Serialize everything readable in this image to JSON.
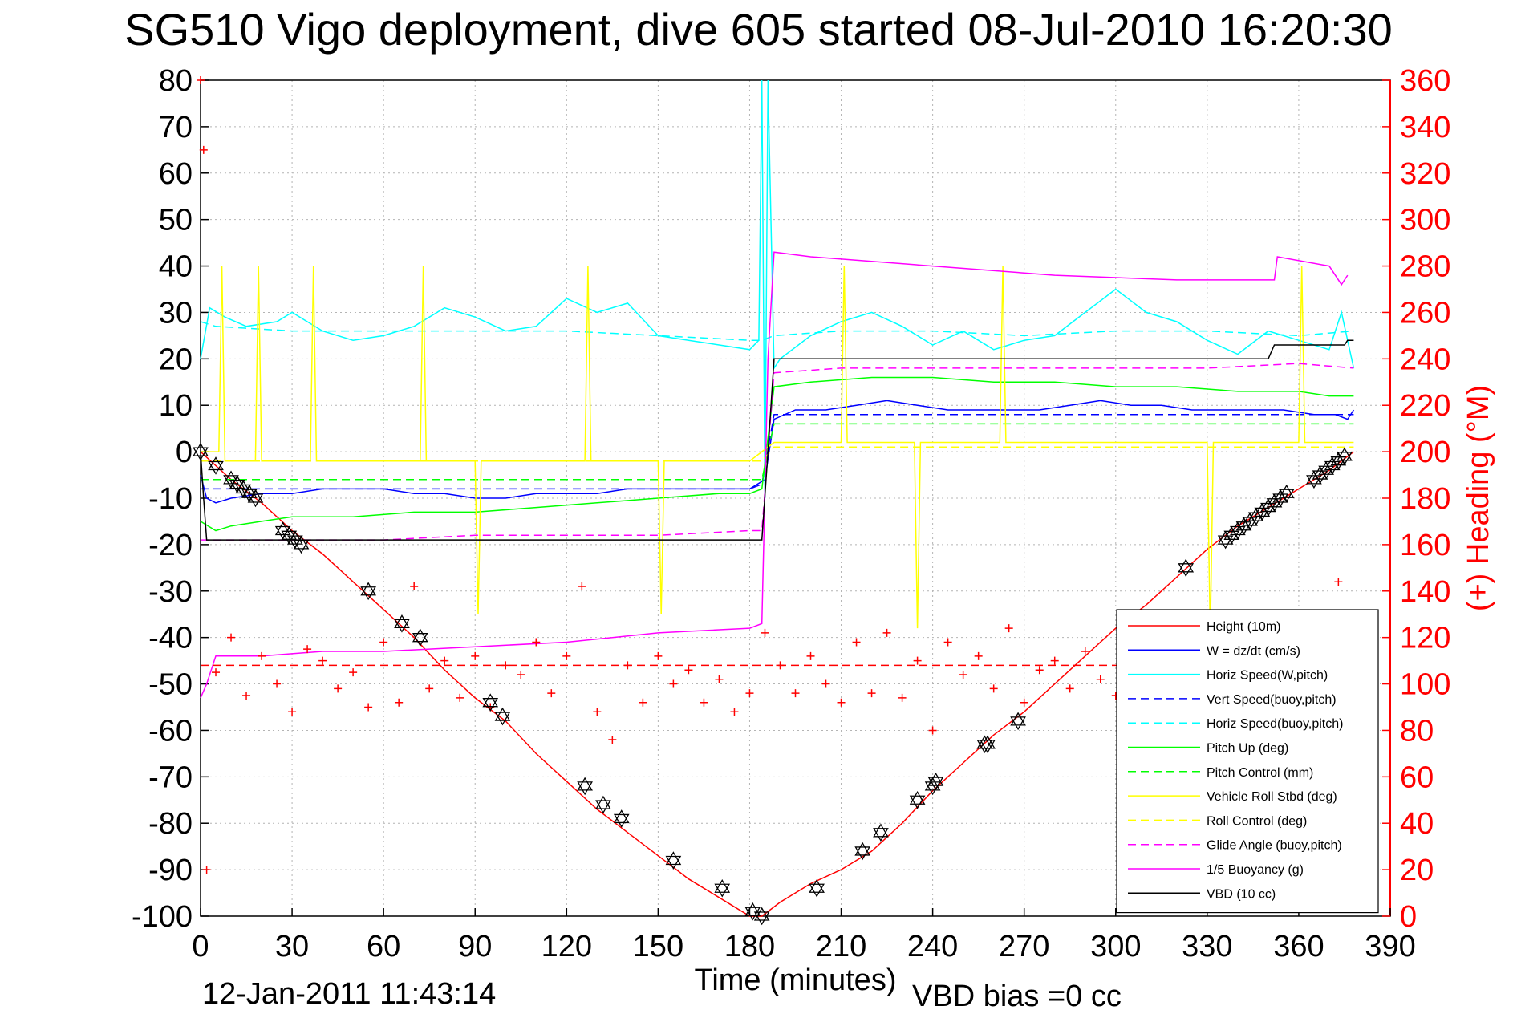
{
  "title": "SG510 Vigo deployment, dive 605 started 08-Jul-2010 16:20:30",
  "footer": {
    "timestamp": "12-Jan-2011 11:43:14",
    "vbd_bias": "VBD bias =0 cc"
  },
  "chart_data": {
    "type": "line",
    "xlabel": "Time (minutes)",
    "ylabel": "",
    "y2label": "(+) Heading (°M)",
    "xlim": [
      0,
      390
    ],
    "ylim": [
      -100,
      80
    ],
    "y2lim": [
      0,
      360
    ],
    "xticks": [
      0,
      30,
      60,
      90,
      120,
      150,
      180,
      210,
      240,
      270,
      300,
      330,
      360,
      390
    ],
    "yticks": [
      80,
      70,
      60,
      50,
      40,
      30,
      20,
      10,
      0,
      -10,
      -20,
      -30,
      -40,
      -50,
      -60,
      -70,
      -80,
      -90,
      -100
    ],
    "y2ticks": [
      360,
      340,
      320,
      300,
      280,
      260,
      240,
      220,
      200,
      180,
      160,
      140,
      120,
      100,
      80,
      60,
      40,
      20,
      0
    ],
    "grid": true,
    "legend_position": "bottom-right",
    "colors": {
      "height": "#ff0000",
      "w": "#0000ff",
      "horiz_w": "#00ffff",
      "vert_buoy": "#0000ff",
      "horiz_buoy": "#00ffff",
      "pitch": "#00ff00",
      "pitch_control": "#00ff00",
      "roll": "#ffff00",
      "roll_control": "#ffff00",
      "glide": "#ff00ff",
      "buoyancy": "#ff00ff",
      "vbd": "#000000",
      "heading": "#ff0000"
    },
    "series": [
      {
        "key": "height",
        "name": "Height (10m)",
        "style": "solid",
        "x": [
          0,
          10,
          20,
          30,
          40,
          50,
          60,
          70,
          80,
          90,
          100,
          110,
          120,
          130,
          140,
          150,
          160,
          170,
          180,
          184,
          190,
          200,
          210,
          220,
          230,
          240,
          250,
          260,
          270,
          280,
          290,
          300,
          310,
          320,
          330,
          340,
          350,
          360,
          370,
          378
        ],
        "y": [
          0,
          -6,
          -11,
          -17,
          -22,
          -28,
          -34,
          -40,
          -47,
          -53,
          -58,
          -65,
          -71,
          -77,
          -82,
          -87,
          -92,
          -96,
          -100,
          -100,
          -97,
          -93,
          -90,
          -86,
          -80,
          -73,
          -67,
          -61,
          -56,
          -50,
          -44,
          -38,
          -33,
          -27,
          -21,
          -16,
          -12,
          -8,
          -4,
          0
        ]
      },
      {
        "key": "w",
        "name": "W = dz/dt (cm/s)",
        "style": "solid",
        "x": [
          0,
          2,
          5,
          10,
          20,
          30,
          40,
          50,
          60,
          70,
          80,
          90,
          100,
          110,
          120,
          130,
          140,
          150,
          160,
          170,
          180,
          185,
          188,
          195,
          205,
          215,
          225,
          235,
          245,
          255,
          265,
          275,
          285,
          295,
          305,
          315,
          325,
          335,
          345,
          355,
          365,
          372,
          376,
          378
        ],
        "y": [
          -5,
          -10,
          -11,
          -10,
          -9,
          -9,
          -8,
          -8,
          -8,
          -9,
          -9,
          -10,
          -10,
          -9,
          -9,
          -9,
          -8,
          -8,
          -8,
          -8,
          -8,
          -6,
          7,
          9,
          9,
          10,
          11,
          10,
          9,
          9,
          9,
          9,
          10,
          11,
          10,
          10,
          9,
          9,
          9,
          9,
          8,
          8,
          7,
          9
        ]
      },
      {
        "key": "horiz_w",
        "name": "Horiz Speed(W,pitch)",
        "style": "solid",
        "x": [
          0,
          3,
          8,
          15,
          25,
          30,
          40,
          50,
          60,
          70,
          80,
          90,
          100,
          110,
          120,
          130,
          140,
          150,
          160,
          170,
          180,
          183,
          184,
          185,
          186,
          188,
          190,
          200,
          210,
          220,
          230,
          240,
          250,
          260,
          270,
          280,
          290,
          300,
          310,
          320,
          330,
          340,
          350,
          360,
          370,
          374,
          378
        ],
        "y": [
          20,
          31,
          29,
          27,
          28,
          30,
          26,
          24,
          25,
          27,
          31,
          29,
          26,
          27,
          33,
          30,
          32,
          25,
          24,
          23,
          22,
          24,
          80,
          -10,
          80,
          18,
          20,
          25,
          28,
          30,
          27,
          23,
          26,
          22,
          24,
          25,
          30,
          35,
          30,
          28,
          24,
          21,
          26,
          24,
          22,
          30,
          18
        ]
      },
      {
        "key": "vert_buoy",
        "name": "Vert Speed(buoy,pitch)",
        "style": "dashed",
        "x": [
          0,
          5,
          30,
          60,
          90,
          120,
          150,
          180,
          184,
          188,
          210,
          240,
          270,
          300,
          330,
          360,
          378
        ],
        "y": [
          -8,
          -8,
          -8,
          -8,
          -8,
          -8,
          -8,
          -8,
          -7,
          8,
          8,
          8,
          8,
          8,
          8,
          8,
          8
        ]
      },
      {
        "key": "horiz_buoy",
        "name": "Horiz Speed(buoy,pitch)",
        "style": "dashed",
        "x": [
          0,
          5,
          30,
          60,
          90,
          120,
          150,
          180,
          184,
          188,
          210,
          240,
          270,
          300,
          330,
          360,
          378
        ],
        "y": [
          28,
          27,
          26,
          26,
          26,
          26,
          25,
          24,
          24,
          25,
          26,
          26,
          25,
          26,
          26,
          25,
          26
        ]
      },
      {
        "key": "pitch",
        "name": "Pitch Up (deg)",
        "style": "solid",
        "x": [
          0,
          5,
          10,
          20,
          30,
          50,
          70,
          90,
          110,
          130,
          150,
          170,
          180,
          184,
          188,
          200,
          220,
          240,
          260,
          280,
          300,
          320,
          340,
          360,
          370,
          378
        ],
        "y": [
          -15,
          -17,
          -16,
          -15,
          -14,
          -14,
          -13,
          -13,
          -12,
          -11,
          -10,
          -9,
          -9,
          -8,
          14,
          15,
          16,
          16,
          15,
          15,
          14,
          14,
          13,
          13,
          12,
          12
        ]
      },
      {
        "key": "pitch_control",
        "name": "Pitch Control (mm)",
        "style": "dashed",
        "x": [
          0,
          5,
          30,
          60,
          90,
          120,
          150,
          180,
          184,
          188,
          210,
          240,
          270,
          300,
          330,
          360,
          378
        ],
        "y": [
          -6,
          -6,
          -6,
          -6,
          -6,
          -6,
          -6,
          -6,
          -6,
          6,
          6,
          6,
          6,
          6,
          6,
          6,
          6
        ]
      },
      {
        "key": "roll",
        "name": "Vehicle Roll Stbd (deg)",
        "style": "solid",
        "x": [
          0,
          6,
          7,
          8,
          18,
          19,
          20,
          36,
          37,
          38,
          72,
          73,
          74,
          90,
          91,
          92,
          126,
          127,
          128,
          150,
          151,
          152,
          180,
          184,
          188,
          210,
          211,
          212,
          234,
          235,
          236,
          262,
          263,
          264,
          300,
          330,
          331,
          332,
          360,
          361,
          362,
          378
        ],
        "y": [
          0,
          0,
          40,
          -2,
          -2,
          40,
          -2,
          -2,
          40,
          -2,
          -2,
          40,
          -2,
          -2,
          -35,
          -2,
          -2,
          40,
          -2,
          -2,
          -35,
          -2,
          -2,
          0,
          2,
          2,
          40,
          2,
          2,
          -38,
          2,
          2,
          40,
          2,
          2,
          2,
          -40,
          2,
          2,
          40,
          2,
          2
        ]
      },
      {
        "key": "roll_control",
        "name": "Roll Control (deg)",
        "style": "dashed",
        "x": [
          0,
          5,
          30,
          60,
          90,
          120,
          150,
          180,
          184,
          188,
          210,
          240,
          270,
          300,
          330,
          360,
          378
        ],
        "y": [
          -2,
          -2,
          -2,
          -2,
          -2,
          -2,
          -2,
          -2,
          -2,
          1,
          1,
          1,
          1,
          1,
          1,
          1,
          1
        ]
      },
      {
        "key": "glide",
        "name": "Glide Angle (buoy,pitch)",
        "style": "dashed",
        "x": [
          0,
          5,
          30,
          60,
          90,
          120,
          150,
          180,
          184,
          188,
          210,
          240,
          270,
          300,
          330,
          360,
          378
        ],
        "y": [
          -19,
          -19,
          -19,
          -19,
          -18,
          -18,
          -18,
          -17,
          -17,
          17,
          18,
          18,
          18,
          18,
          18,
          19,
          18
        ]
      },
      {
        "key": "buoyancy",
        "name": "1/5 Buoyancy (g)",
        "style": "solid",
        "x": [
          0,
          2,
          5,
          20,
          40,
          60,
          90,
          120,
          150,
          180,
          184,
          186,
          188,
          200,
          240,
          280,
          320,
          352,
          353,
          370,
          374,
          376
        ],
        "y": [
          -53,
          -50,
          -44,
          -44,
          -43,
          -43,
          -42,
          -41,
          -39,
          -38,
          -37,
          20,
          43,
          42,
          40,
          38,
          37,
          37,
          42,
          40,
          36,
          38
        ]
      },
      {
        "key": "vbd",
        "name": "VBD (10 cc)",
        "style": "solid",
        "x": [
          0,
          1,
          2,
          60,
          120,
          180,
          184,
          186,
          188,
          230,
          300,
          350,
          352,
          375,
          376,
          378
        ],
        "y": [
          0,
          -10,
          -19,
          -19,
          -19,
          -19,
          -19,
          0,
          20,
          20,
          20,
          20,
          23,
          23,
          24,
          24
        ]
      },
      {
        "key": "heading",
        "name": "(+) Heading (°M)",
        "axis": "right",
        "style": "markers",
        "marker": "+",
        "x": [
          0,
          1,
          2,
          5,
          10,
          15,
          20,
          25,
          30,
          35,
          40,
          45,
          50,
          55,
          60,
          65,
          70,
          75,
          80,
          85,
          90,
          95,
          100,
          105,
          110,
          115,
          120,
          125,
          130,
          135,
          140,
          145,
          150,
          155,
          160,
          165,
          170,
          175,
          180,
          185,
          190,
          195,
          200,
          205,
          210,
          215,
          220,
          225,
          230,
          235,
          240,
          245,
          250,
          255,
          260,
          265,
          270,
          275,
          280,
          285,
          290,
          295,
          300,
          305,
          310,
          315,
          320,
          325,
          330,
          335,
          340,
          345,
          350,
          355,
          360,
          365,
          370,
          373,
          376
        ],
        "y": [
          360,
          330,
          20,
          105,
          120,
          95,
          112,
          100,
          88,
          115,
          110,
          98,
          105,
          90,
          118,
          92,
          142,
          98,
          110,
          94,
          112,
          90,
          108,
          104,
          118,
          96,
          112,
          142,
          88,
          76,
          108,
          92,
          112,
          100,
          106,
          92,
          102,
          88,
          96,
          122,
          108,
          96,
          112,
          100,
          92,
          118,
          96,
          122,
          94,
          110,
          80,
          118,
          104,
          112,
          98,
          124,
          92,
          106,
          110,
          98,
          114,
          102,
          95,
          118,
          106,
          120,
          112,
          96,
          104,
          112,
          94,
          108,
          116,
          98,
          120,
          104,
          96,
          144,
          110
        ]
      },
      {
        "key": "heading_desired",
        "name": "",
        "axis": "right",
        "style": "dashed",
        "x": [
          0,
          378
        ],
        "y": [
          108,
          108
        ]
      }
    ],
    "markers": {
      "name": "",
      "symbol": "hexagram",
      "x": [
        0,
        5,
        10,
        12,
        14,
        16,
        18,
        27,
        29,
        31,
        33,
        55,
        66,
        72,
        95,
        99,
        126,
        132,
        138,
        155,
        171,
        181,
        184,
        202,
        217,
        223,
        235,
        240,
        241,
        257,
        258,
        268,
        323,
        336,
        338,
        340,
        342,
        344,
        346,
        348,
        350,
        352,
        354,
        356,
        365,
        367,
        369,
        371,
        373,
        375
      ],
      "y": [
        0,
        -3,
        -6,
        -7,
        -8,
        -9,
        -10,
        -17,
        -18,
        -19,
        -20,
        -30,
        -37,
        -40,
        -54,
        -57,
        -72,
        -76,
        -79,
        -88,
        -94,
        -99,
        -100,
        -94,
        -86,
        -82,
        -75,
        -72,
        -71,
        -63,
        -63,
        -58,
        -25,
        -19,
        -18,
        -17,
        -16,
        -15,
        -14,
        -13,
        -12,
        -11,
        -10,
        -9,
        -6,
        -5,
        -4,
        -3,
        -2,
        -1
      ]
    }
  }
}
